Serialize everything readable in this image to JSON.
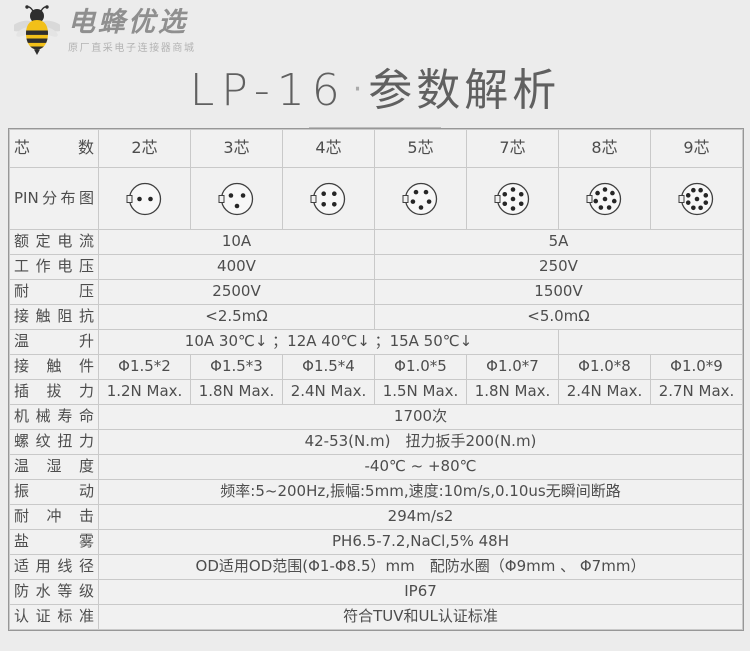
{
  "logo": {
    "brand": "电蜂优选",
    "tagline": "原厂直采电子连接器商城"
  },
  "title": {
    "model": "LP-16",
    "separator": "·",
    "name": "参数解析"
  },
  "colors": {
    "page_bg": "#ececec",
    "table_outer_border": "#979797",
    "cell_border": "#c9c9c9",
    "text": "#4d4d4d",
    "pin_circle_stroke": "#3f3f3f",
    "pin_dot": "#262626",
    "bee_yellow": "#f2c019",
    "bee_black": "#2e2e2e",
    "wing_gray": "#d9d9d9"
  },
  "table": {
    "header_label": "芯数",
    "header_columns": [
      "2芯",
      "3芯",
      "4芯",
      "5芯",
      "7芯",
      "8芯",
      "9芯"
    ],
    "pin_label": "PIN分布图",
    "pin_diagrams": [
      {
        "name": "pin-2",
        "ring": 2,
        "ring_radius": 5.5,
        "start_deg": 0,
        "center_pin": false
      },
      {
        "name": "pin-3",
        "ring": 3,
        "ring_radius": 7,
        "start_deg": 90,
        "center_pin": false
      },
      {
        "name": "pin-4",
        "ring": 4,
        "ring_radius": 7.5,
        "start_deg": 45,
        "center_pin": false
      },
      {
        "name": "pin-5",
        "ring": 5,
        "ring_radius": 8.5,
        "start_deg": 90,
        "center_pin": false
      },
      {
        "name": "pin-7",
        "ring": 6,
        "ring_radius": 9.5,
        "start_deg": -90,
        "center_pin": true
      },
      {
        "name": "pin-8",
        "ring": 7,
        "ring_radius": 9.5,
        "start_deg": -90,
        "center_pin": true
      },
      {
        "name": "pin-9",
        "ring": 8,
        "ring_radius": 9.5,
        "start_deg": -67.5,
        "center_pin": true
      }
    ],
    "rows": [
      {
        "label": "额定电流",
        "cells": [
          {
            "text": "10A",
            "span": 3
          },
          {
            "text": "5A",
            "span": 4
          }
        ]
      },
      {
        "label": "工作电压",
        "cells": [
          {
            "text": "400V",
            "span": 3
          },
          {
            "text": "250V",
            "span": 4
          }
        ]
      },
      {
        "label": "耐压",
        "cells": [
          {
            "text": "2500V",
            "span": 3
          },
          {
            "text": "1500V",
            "span": 4
          }
        ]
      },
      {
        "label": "接触阻抗",
        "cells": [
          {
            "text": "<2.5mΩ",
            "span": 3
          },
          {
            "text": "<5.0mΩ",
            "span": 4
          }
        ]
      },
      {
        "label": "温升",
        "cells": [
          {
            "text": "10A 30℃↓ ；12A 40℃↓ ；15A 50℃↓",
            "span": 5,
            "align": "left"
          },
          {
            "text": "",
            "span": 2
          }
        ]
      },
      {
        "label": "接触件",
        "cells": [
          {
            "text": "Φ1.5*2"
          },
          {
            "text": "Φ1.5*3"
          },
          {
            "text": "Φ1.5*4"
          },
          {
            "text": "Φ1.0*5"
          },
          {
            "text": "Φ1.0*7"
          },
          {
            "text": "Φ1.0*8"
          },
          {
            "text": "Φ1.0*9"
          }
        ]
      },
      {
        "label": "插拔力",
        "cells": [
          {
            "text": "1.2N Max."
          },
          {
            "text": "1.8N Max."
          },
          {
            "text": "2.4N Max."
          },
          {
            "text": "1.5N Max."
          },
          {
            "text": "1.8N Max."
          },
          {
            "text": "2.4N Max."
          },
          {
            "text": "2.7N Max."
          }
        ]
      },
      {
        "label": "机械寿命",
        "cells": [
          {
            "text": "1700次",
            "span": 7,
            "align": "left"
          }
        ]
      },
      {
        "label": "螺纹扭力",
        "cells": [
          {
            "text": "42-53(N.m)　扭力扳手200(N.m)",
            "span": 7,
            "align": "left"
          }
        ]
      },
      {
        "label": "温湿度",
        "cells": [
          {
            "text": "-40℃ ~ +80℃",
            "span": 7,
            "align": "left"
          }
        ]
      },
      {
        "label": "振动",
        "cells": [
          {
            "text": "频率:5~200Hz,振幅:5mm,速度:10m/s,0.10us无瞬间断路",
            "span": 7,
            "align": "left"
          }
        ]
      },
      {
        "label": "耐冲击",
        "cells": [
          {
            "text": "294m/s2",
            "span": 7,
            "align": "left"
          }
        ]
      },
      {
        "label": "盐雾",
        "cells": [
          {
            "text": "PH6.5-7.2,NaCl,5% 48H",
            "span": 7,
            "align": "left"
          }
        ]
      },
      {
        "label": "适用线径",
        "cells": [
          {
            "text": "OD适用OD范围(Φ1-Φ8.5）mm　配防水圈（Φ9mm 、 Φ7mm）",
            "span": 7,
            "align": "left"
          }
        ]
      },
      {
        "label": "防水等级",
        "cells": [
          {
            "text": "IP67",
            "span": 7,
            "align": "left"
          }
        ]
      },
      {
        "label": "认证标准",
        "cells": [
          {
            "text": "符合TUV和UL认证标准",
            "span": 7,
            "align": "left"
          }
        ]
      }
    ]
  }
}
